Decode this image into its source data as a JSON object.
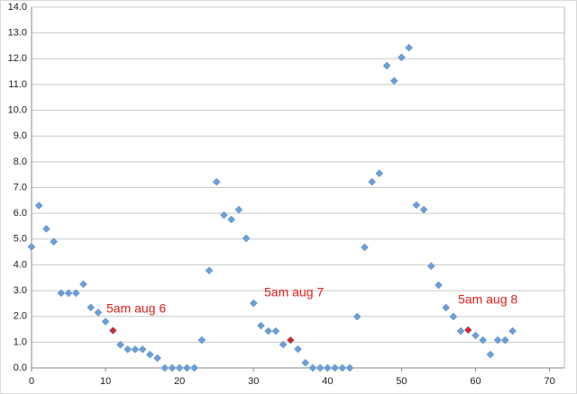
{
  "chart_data": {
    "type": "scatter",
    "xlim": [
      0,
      72
    ],
    "xticks": [
      0,
      10,
      20,
      30,
      40,
      50,
      60,
      70
    ],
    "ylim": [
      0,
      14
    ],
    "yticks": [
      {
        "value": 0,
        "label": "0.0"
      },
      {
        "value": 1,
        "label": "1.0"
      },
      {
        "value": 2,
        "label": "2.0"
      },
      {
        "value": 3,
        "label": "3.0"
      },
      {
        "value": 4,
        "label": "4.0"
      },
      {
        "value": 5,
        "label": "5.0"
      },
      {
        "value": 6,
        "label": "6.0"
      },
      {
        "value": 7,
        "label": "7.0"
      },
      {
        "value": 8,
        "label": "8.0"
      },
      {
        "value": 9,
        "label": "9.0"
      },
      {
        "value": 10,
        "label": "10.0"
      },
      {
        "value": 11,
        "label": "11.0"
      },
      {
        "value": 12,
        "label": "12.0"
      },
      {
        "value": 13,
        "label": "13.0"
      },
      {
        "value": 14,
        "label": "14.0"
      }
    ],
    "grid": true,
    "series": [
      {
        "color": "#6b9fd9",
        "x": [
          0,
          1,
          2,
          3,
          4,
          5,
          6,
          7,
          8,
          9,
          10,
          12,
          13,
          14,
          15,
          16,
          17,
          18,
          19,
          20,
          21,
          22,
          23,
          24,
          25,
          26,
          27,
          28,
          29,
          30,
          31,
          32,
          33,
          34,
          36,
          37,
          38,
          39,
          40,
          41,
          42,
          43,
          44,
          45,
          46,
          47,
          48,
          49,
          50,
          51,
          52,
          53,
          54,
          55,
          56,
          57,
          58,
          60,
          61,
          62,
          63,
          64,
          65
        ],
        "values": [
          4.7,
          6.3,
          5.4,
          4.9,
          2.9,
          2.9,
          2.9,
          3.25,
          2.35,
          2.15,
          1.8,
          0.9,
          0.72,
          0.72,
          0.72,
          0.52,
          0.38,
          0,
          0,
          0,
          0,
          0,
          1.08,
          3.78,
          7.22,
          5.93,
          5.76,
          6.14,
          5.03,
          2.51,
          1.64,
          1.43,
          1.43,
          0.91,
          0.73,
          0.2,
          0,
          0,
          0,
          0,
          0,
          0,
          1.99,
          4.68,
          7.22,
          7.55,
          11.73,
          11.14,
          12.05,
          12.43,
          6.32,
          6.14,
          3.95,
          3.21,
          2.34,
          1.99,
          1.43,
          1.26,
          1.08,
          0.52,
          1.08,
          1.08,
          1.43
        ]
      },
      {
        "color": "#d42a22",
        "x": [
          11,
          35,
          59
        ],
        "values": [
          1.45,
          1.08,
          1.47
        ]
      }
    ],
    "annotations": [
      "5am aug 6",
      "5am aug 7",
      "5am aug 8"
    ]
  }
}
